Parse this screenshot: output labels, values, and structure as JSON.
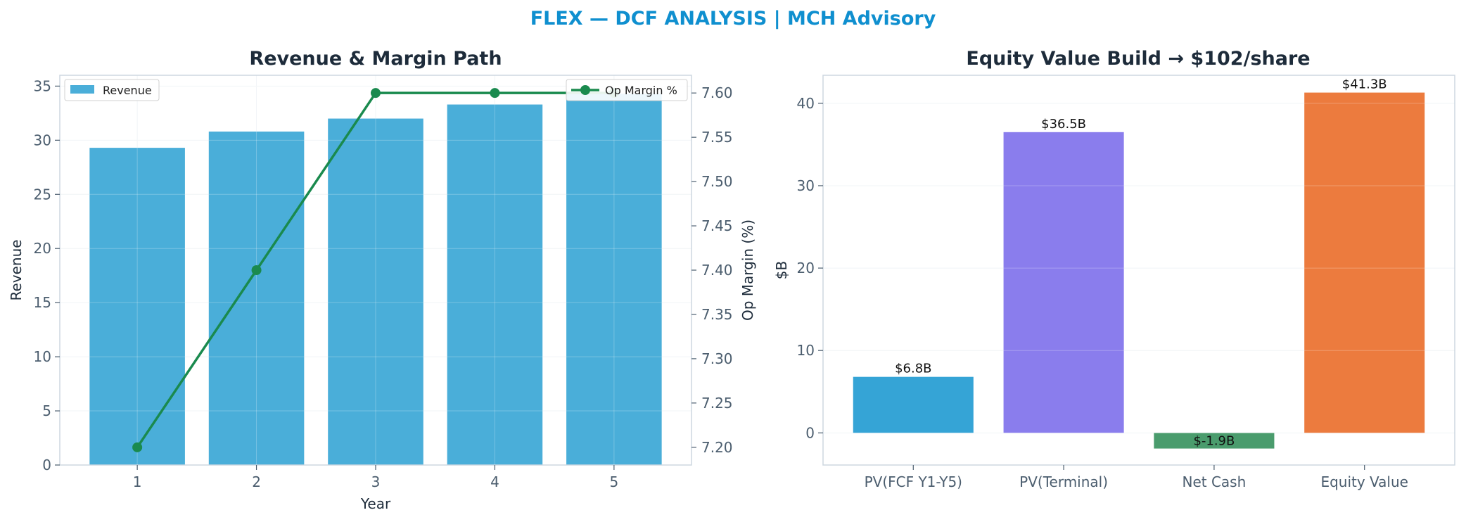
{
  "suptitle": "FLEX — DCF ANALYSIS | MCH Advisory",
  "colors": {
    "title": "#0f8fcf",
    "revenue_bar": "#4aaed9",
    "margin_line": "#1a8a4e",
    "pv_fcf": "#35a4d6",
    "pv_terminal": "#8a7ded",
    "net_cash": "#4a9c6d",
    "equity_value": "#ec7b3e"
  },
  "chart_data": [
    {
      "type": "bar",
      "title": "Revenue & Margin Path",
      "xlabel": "Year",
      "ylabel": "Revenue",
      "y2label": "Op Margin (%)",
      "categories": [
        "1",
        "2",
        "3",
        "4",
        "5"
      ],
      "ylim": [
        0,
        36
      ],
      "yticks": [
        0,
        5,
        10,
        15,
        20,
        25,
        30,
        35
      ],
      "y2lim": [
        7.18,
        7.62
      ],
      "y2ticks": [
        "7.20",
        "7.25",
        "7.30",
        "7.35",
        "7.40",
        "7.45",
        "7.50",
        "7.55",
        "7.60"
      ],
      "series": [
        {
          "name": "Revenue",
          "type": "bar",
          "axis": "left",
          "values": [
            29.3,
            30.8,
            32.0,
            33.3,
            34.3
          ]
        },
        {
          "name": "Op Margin %",
          "type": "line",
          "axis": "right",
          "values": [
            7.2,
            7.4,
            7.6,
            7.6,
            7.6
          ]
        }
      ],
      "legend": [
        "upper-left",
        "upper-right"
      ],
      "grid": true
    },
    {
      "type": "bar",
      "title": "Equity Value Build → $102/share",
      "xlabel": "",
      "ylabel": "$B",
      "categories": [
        "PV(FCF Y1-Y5)",
        "PV(Terminal)",
        "Net Cash",
        "Equity Value"
      ],
      "values": [
        6.8,
        36.5,
        -1.9,
        41.3
      ],
      "data_labels": [
        "$6.8B",
        "$36.5B",
        "$-1.9B",
        "$41.3B"
      ],
      "ylim": [
        -3.9,
        43.4
      ],
      "yticks": [
        0,
        10,
        20,
        30,
        40
      ],
      "grid": true
    }
  ]
}
